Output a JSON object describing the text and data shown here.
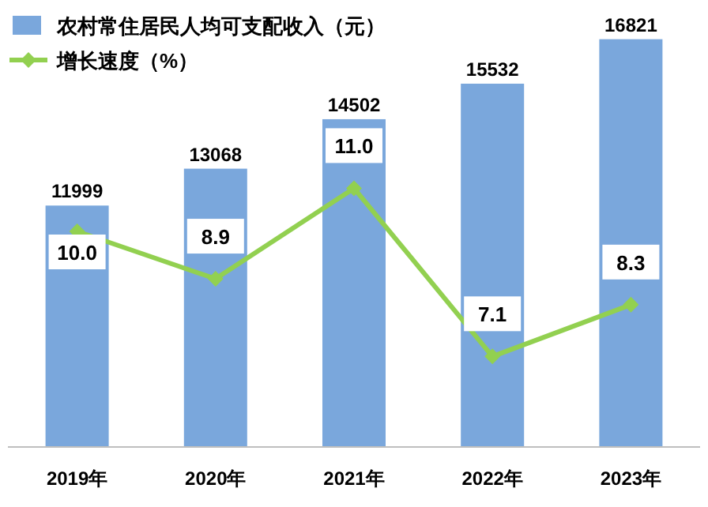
{
  "chart_data": {
    "type": "bar",
    "categories": [
      "2019年",
      "2020年",
      "2021年",
      "2022年",
      "2023年"
    ],
    "series": [
      {
        "name": "农村常住居民人均可支配收入（元）",
        "color": "#7aa7dc",
        "values": [
          11999,
          13068,
          14502,
          15532,
          16821
        ]
      },
      {
        "name": "增长速度（%）",
        "type": "line",
        "axis": "y2",
        "color": "#92d050",
        "marker": "diamond",
        "values": [
          10.0,
          8.9,
          11.0,
          7.1,
          8.3
        ],
        "value_labels": [
          "10.0",
          "8.9",
          "11.0",
          "7.1",
          "8.3"
        ]
      }
    ],
    "ylim": [
      5000,
      17500
    ],
    "y2lim": [
      5,
      15
    ],
    "data_labels": true,
    "legend": "top left"
  }
}
